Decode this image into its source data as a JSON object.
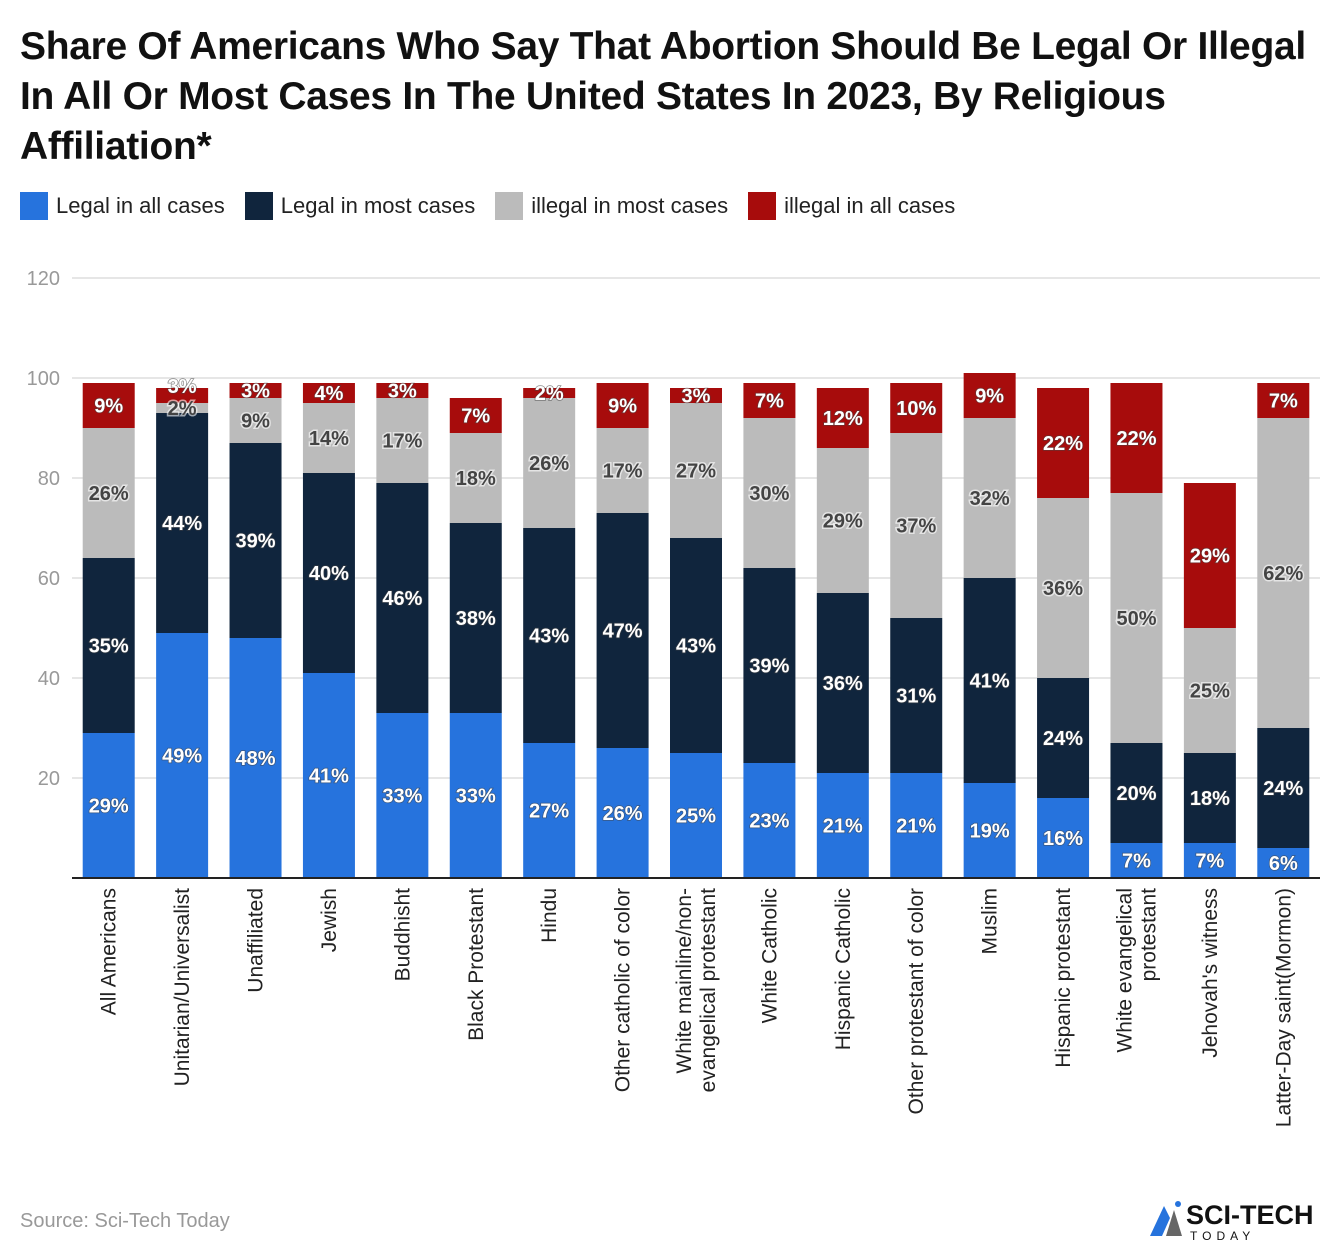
{
  "title": "Share Of Americans Who Say That Abortion Should Be Legal Or Illegal In All Or Most Cases In The United States In 2023, By Religious Affiliation*",
  "source": "Source: Sci-Tech Today",
  "logo": {
    "main": "SCI-TECH",
    "sub": "TODAY"
  },
  "chart_data": {
    "type": "bar",
    "stacked": true,
    "title": "Share Of Americans Who Say That Abortion Should Be Legal Or Illegal In All Or Most Cases In The United States In 2023, By Religious Affiliation*",
    "ylim": [
      0,
      120
    ],
    "yticks": [
      20,
      40,
      60,
      80,
      100,
      120
    ],
    "grid": true,
    "legend": "top-left",
    "categories": [
      [
        "All Americans"
      ],
      [
        "Unitarian/Universalist"
      ],
      [
        "Unaffiliated"
      ],
      [
        "Jewish"
      ],
      [
        "Buddhisht"
      ],
      [
        "Black Protestant"
      ],
      [
        "Hindu"
      ],
      [
        "Other catholic of color"
      ],
      [
        "White mainline/non-",
        "evangelical protestant"
      ],
      [
        "White Catholic"
      ],
      [
        "Hispanic Catholic"
      ],
      [
        "Other protestant of color"
      ],
      [
        "Muslim"
      ],
      [
        "Hispanic protestant"
      ],
      [
        "White evangelical",
        "protestant"
      ],
      [
        "Jehovah's witness"
      ],
      [
        "Latter-Day saint(Mormon)"
      ]
    ],
    "series": [
      {
        "name": "Legal in all cases",
        "color": "#2673dd",
        "values": [
          29,
          49,
          48,
          41,
          33,
          33,
          27,
          26,
          25,
          23,
          21,
          21,
          19,
          16,
          7,
          7,
          6
        ]
      },
      {
        "name": "Legal in most cases",
        "color": "#10253d",
        "values": [
          35,
          44,
          39,
          40,
          46,
          38,
          43,
          47,
          43,
          39,
          36,
          31,
          41,
          24,
          20,
          18,
          24
        ]
      },
      {
        "name": "illegal in most cases",
        "color": "#bbbbbb",
        "values": [
          26,
          2,
          9,
          14,
          17,
          18,
          26,
          17,
          27,
          30,
          29,
          37,
          32,
          36,
          50,
          25,
          62
        ]
      },
      {
        "name": "illegal in all cases",
        "color": "#a70c0c",
        "values": [
          9,
          3,
          3,
          4,
          3,
          7,
          2,
          9,
          3,
          7,
          12,
          10,
          9,
          22,
          22,
          29,
          7
        ]
      }
    ]
  }
}
